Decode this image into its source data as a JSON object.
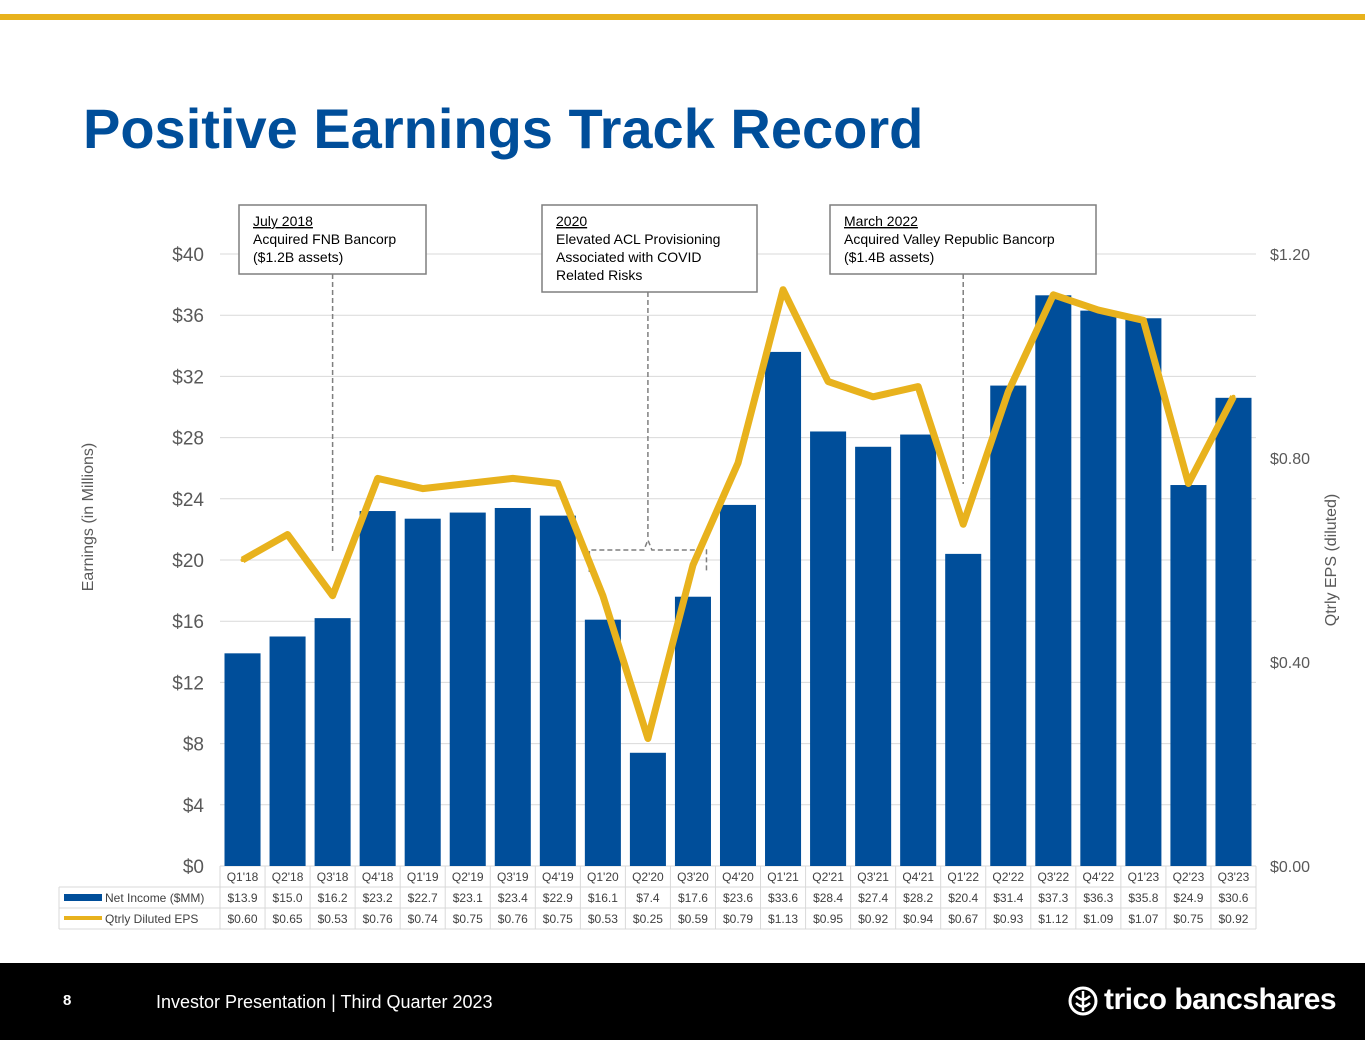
{
  "title": "Positive Earnings Track Record",
  "footer": {
    "page_number": "8",
    "text": "Investor Presentation | Third Quarter 2023",
    "logo_text": "trico bancshares",
    "logo_icon": "trico-leaf-logo-icon"
  },
  "colors": {
    "accent": "#e8b21d",
    "bar": "#004e9a",
    "line": "#e8b21d",
    "title": "#004e9a"
  },
  "annotations": [
    {
      "lines": [
        "July 2018",
        "Acquired FNB Bancorp",
        "($1.2B assets)"
      ],
      "target": "Q3'18"
    },
    {
      "lines": [
        "2020",
        "Elevated ACL Provisioning",
        "Associated with COVID",
        "Related Risks"
      ],
      "target": "Q2'20"
    },
    {
      "lines": [
        "March 2022",
        "Acquired Valley Republic Bancorp",
        "($1.4B assets)"
      ],
      "target": "Q1'22"
    }
  ],
  "chart_data": {
    "type": "bar",
    "categories": [
      "Q1'18",
      "Q2'18",
      "Q3'18",
      "Q4'18",
      "Q1'19",
      "Q2'19",
      "Q3'19",
      "Q4'19",
      "Q1'20",
      "Q2'20",
      "Q3'20",
      "Q4'20",
      "Q1'21",
      "Q2'21",
      "Q3'21",
      "Q4'21",
      "Q1'22",
      "Q2'22",
      "Q3'22",
      "Q4'22",
      "Q1'23",
      "Q2'23",
      "Q3'23"
    ],
    "series": [
      {
        "name": "Net Income ($MM)",
        "type": "bar",
        "axis": "left",
        "values": [
          13.9,
          15.0,
          16.2,
          23.2,
          22.7,
          23.1,
          23.4,
          22.9,
          16.1,
          7.4,
          17.6,
          23.6,
          33.6,
          28.4,
          27.4,
          28.2,
          20.4,
          31.4,
          37.3,
          36.3,
          35.8,
          24.9,
          30.6
        ],
        "labels": [
          "$13.9",
          "$15.0",
          "$16.2",
          "$23.2",
          "$22.7",
          "$23.1",
          "$23.4",
          "$22.9",
          "$16.1",
          "$7.4",
          "$17.6",
          "$23.6",
          "$33.6",
          "$28.4",
          "$27.4",
          "$28.2",
          "$20.4",
          "$31.4",
          "$37.3",
          "$36.3",
          "$35.8",
          "$24.9",
          "$30.6"
        ]
      },
      {
        "name": "Qtrly Diluted EPS",
        "type": "line",
        "axis": "right",
        "values": [
          0.6,
          0.65,
          0.53,
          0.76,
          0.74,
          0.75,
          0.76,
          0.75,
          0.53,
          0.25,
          0.59,
          0.79,
          1.13,
          0.95,
          0.92,
          0.94,
          0.67,
          0.93,
          1.12,
          1.09,
          1.07,
          0.75,
          0.92
        ],
        "labels": [
          "$0.60",
          "$0.65",
          "$0.53",
          "$0.76",
          "$0.74",
          "$0.75",
          "$0.76",
          "$0.75",
          "$0.53",
          "$0.25",
          "$0.59",
          "$0.79",
          "$1.13",
          "$0.95",
          "$0.92",
          "$0.94",
          "$0.67",
          "$0.93",
          "$1.12",
          "$1.09",
          "$1.07",
          "$0.75",
          "$0.92"
        ]
      }
    ],
    "ylabel": "Earnings (in Millions)",
    "ylabel_right": "Qtrly EPS (diluted)",
    "ylim": [
      0,
      40
    ],
    "ylim_right": [
      0,
      1.2
    ],
    "yticks": [
      "$0",
      "$4",
      "$8",
      "$12",
      "$16",
      "$20",
      "$24",
      "$28",
      "$32",
      "$36",
      "$40"
    ],
    "yticks_right": [
      "$0.00",
      "$0.40",
      "$0.80",
      "$1.20"
    ],
    "grid": true,
    "legend": "table-below"
  }
}
